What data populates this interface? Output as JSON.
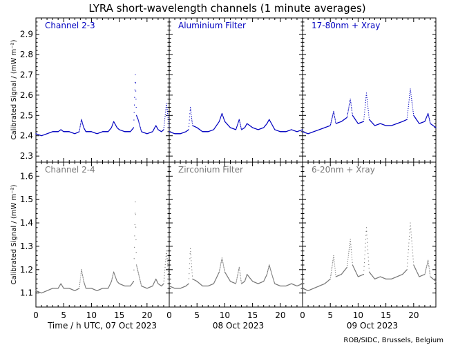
{
  "chart_data": {
    "type": "line",
    "title": "LYRA short-wavelength channels (1 minute averages)",
    "ylabel": "Calibrated Signal / (mW m⁻²)",
    "credit": "ROB/SIDC, Brussels, Belgium",
    "colors": {
      "top": "#0000c0",
      "bottom": "#787878"
    },
    "x_tick_labels": [
      "0",
      "5",
      "10",
      "15",
      "20"
    ],
    "day_labels": [
      "Time / h UTC, 07 Oct 2023",
      "08 Oct 2023",
      "09 Oct 2023"
    ],
    "top_row": {
      "ylim": [
        2.27,
        2.98
      ],
      "yticks": [
        "2.3",
        "2.4",
        "2.5",
        "2.6",
        "2.7",
        "2.8",
        "2.9"
      ],
      "panels": [
        {
          "name": "Channel 2-3",
          "hours": [
            0,
            1,
            2,
            3,
            4,
            4.5,
            5,
            6,
            7,
            7.8,
            8.2,
            8.6,
            9,
            10,
            11,
            12,
            13,
            13.6,
            14,
            14.6,
            15,
            16,
            17,
            17.6,
            17.9,
            18.1,
            18.4,
            19,
            20,
            21,
            21.6,
            22,
            22.6,
            23,
            23.5,
            24
          ],
          "values": [
            2.41,
            2.4,
            2.41,
            2.42,
            2.42,
            2.43,
            2.42,
            2.42,
            2.41,
            2.42,
            2.48,
            2.44,
            2.42,
            2.42,
            2.41,
            2.42,
            2.42,
            2.44,
            2.47,
            2.44,
            2.43,
            2.42,
            2.42,
            2.44,
            2.7,
            2.5,
            2.48,
            2.42,
            2.41,
            2.42,
            2.45,
            2.43,
            2.42,
            2.43,
            2.56,
            2.44
          ]
        },
        {
          "name": "Aluminium Filter",
          "hours": [
            0,
            1,
            2,
            3,
            3.5,
            3.8,
            4.2,
            5,
            6,
            7,
            8,
            9,
            9.5,
            10,
            11,
            12,
            12.6,
            13,
            13.6,
            14,
            15,
            16,
            17,
            17.6,
            18,
            18.6,
            19,
            20,
            21,
            22,
            23,
            24
          ],
          "values": [
            2.42,
            2.41,
            2.41,
            2.42,
            2.43,
            2.54,
            2.45,
            2.44,
            2.42,
            2.42,
            2.43,
            2.47,
            2.51,
            2.47,
            2.44,
            2.43,
            2.48,
            2.43,
            2.44,
            2.46,
            2.44,
            2.43,
            2.44,
            2.46,
            2.48,
            2.45,
            2.43,
            2.42,
            2.42,
            2.43,
            2.42,
            2.43
          ]
        },
        {
          "name": "17-80nm + Xray",
          "hours": [
            0,
            1,
            2,
            3,
            4,
            5,
            5.6,
            6,
            7,
            8,
            8.6,
            9,
            10,
            11,
            11.5,
            12,
            13,
            14,
            15,
            16,
            17,
            18,
            18.8,
            19.4,
            20,
            21,
            22,
            22.6,
            23,
            24
          ],
          "values": [
            2.42,
            2.41,
            2.42,
            2.43,
            2.44,
            2.45,
            2.52,
            2.46,
            2.47,
            2.49,
            2.58,
            2.5,
            2.46,
            2.47,
            2.61,
            2.48,
            2.45,
            2.46,
            2.45,
            2.45,
            2.46,
            2.47,
            2.48,
            2.63,
            2.5,
            2.46,
            2.47,
            2.51,
            2.46,
            2.44
          ]
        }
      ]
    },
    "bottom_row": {
      "ylim": [
        1.04,
        1.66
      ],
      "yticks": [
        "1.1",
        "1.2",
        "1.3",
        "1.4",
        "1.5",
        "1.6"
      ],
      "panels": [
        {
          "name": "Channel 2-4",
          "hours": [
            0,
            1,
            2,
            3,
            4,
            4.5,
            5,
            6,
            7,
            7.8,
            8.2,
            8.6,
            9,
            10,
            11,
            12,
            13,
            13.6,
            14,
            14.6,
            15,
            16,
            17,
            17.6,
            17.9,
            18.1,
            18.4,
            19,
            20,
            21,
            21.6,
            22,
            22.6,
            23,
            23.5,
            24
          ],
          "values": [
            1.11,
            1.1,
            1.11,
            1.12,
            1.12,
            1.14,
            1.12,
            1.12,
            1.11,
            1.12,
            1.2,
            1.15,
            1.12,
            1.12,
            1.11,
            1.12,
            1.12,
            1.15,
            1.19,
            1.15,
            1.14,
            1.13,
            1.13,
            1.15,
            1.49,
            1.22,
            1.19,
            1.13,
            1.12,
            1.13,
            1.16,
            1.14,
            1.13,
            1.14,
            1.28,
            1.15
          ]
        },
        {
          "name": "Zirconium Filter",
          "hours": [
            0,
            1,
            2,
            3,
            3.5,
            3.8,
            4.2,
            5,
            6,
            7,
            8,
            9,
            9.5,
            10,
            11,
            12,
            12.6,
            13,
            13.6,
            14,
            15,
            16,
            17,
            17.6,
            18,
            18.6,
            19,
            20,
            21,
            22,
            23,
            24
          ],
          "values": [
            1.13,
            1.12,
            1.12,
            1.13,
            1.14,
            1.29,
            1.16,
            1.15,
            1.13,
            1.13,
            1.14,
            1.19,
            1.25,
            1.19,
            1.15,
            1.14,
            1.21,
            1.14,
            1.15,
            1.18,
            1.15,
            1.14,
            1.15,
            1.18,
            1.22,
            1.17,
            1.14,
            1.13,
            1.13,
            1.14,
            1.13,
            1.14
          ]
        },
        {
          "name": "6-20nm + Xray",
          "hours": [
            0,
            1,
            2,
            3,
            4,
            5,
            5.6,
            6,
            7,
            8,
            8.6,
            9,
            10,
            11,
            11.5,
            12,
            13,
            14,
            15,
            16,
            17,
            18,
            18.8,
            19.4,
            20,
            21,
            22,
            22.6,
            23,
            24
          ],
          "values": [
            1.12,
            1.11,
            1.12,
            1.13,
            1.14,
            1.16,
            1.26,
            1.17,
            1.18,
            1.21,
            1.33,
            1.22,
            1.17,
            1.18,
            1.38,
            1.19,
            1.16,
            1.17,
            1.16,
            1.16,
            1.17,
            1.18,
            1.2,
            1.4,
            1.22,
            1.17,
            1.18,
            1.24,
            1.17,
            1.15
          ]
        }
      ]
    }
  }
}
